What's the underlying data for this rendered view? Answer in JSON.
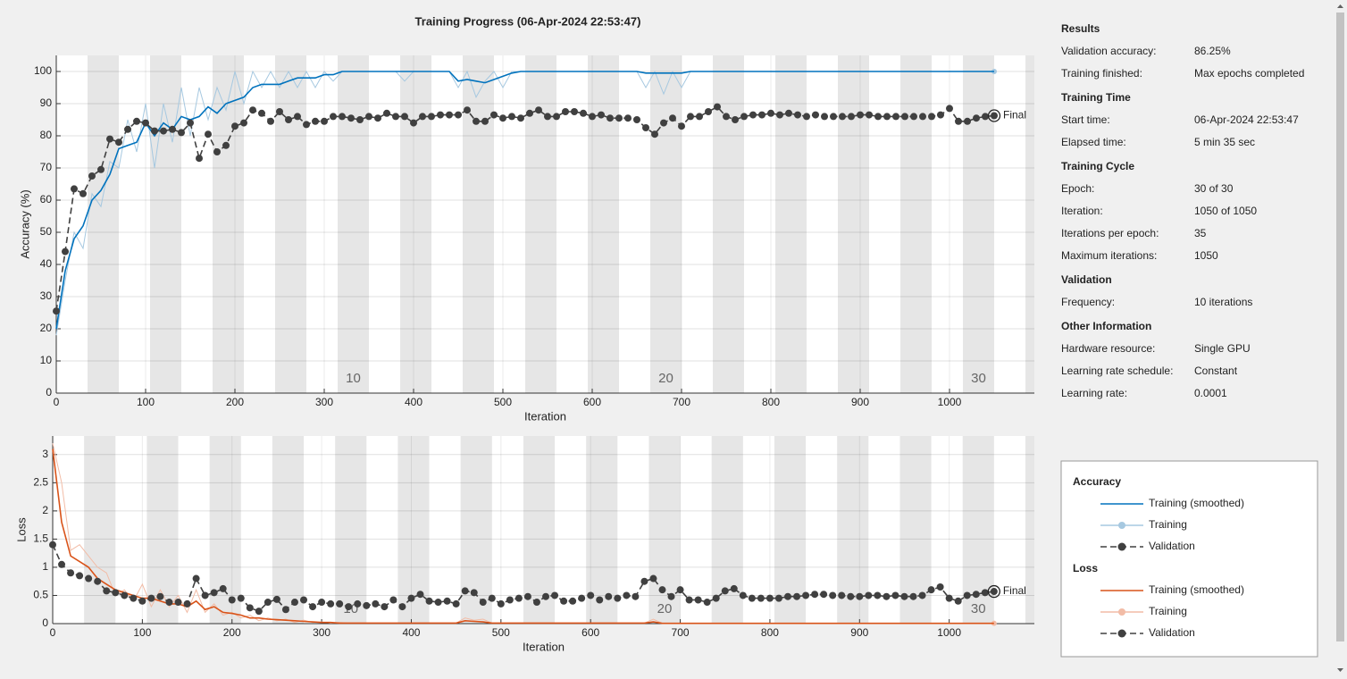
{
  "title": "Training Progress (06-Apr-2024 22:53:47)",
  "chart_data": [
    {
      "type": "line",
      "ylabel": "Accuracy (%)",
      "xlabel": "Iteration",
      "legend_title": "Accuracy",
      "annotation": "Final",
      "xlim": [
        0,
        1095
      ],
      "ylim": [
        0,
        105
      ],
      "xticks": [
        0,
        100,
        200,
        300,
        400,
        500,
        600,
        700,
        800,
        900,
        1000
      ],
      "yticks": [
        0,
        10,
        20,
        30,
        40,
        50,
        60,
        70,
        80,
        90,
        100
      ],
      "grid": true,
      "epoch_labels": [
        10,
        20,
        30
      ],
      "x": [
        0,
        10,
        20,
        30,
        40,
        50,
        60,
        70,
        80,
        90,
        100,
        110,
        120,
        130,
        140,
        150,
        160,
        170,
        180,
        190,
        200,
        210,
        220,
        230,
        240,
        250,
        260,
        270,
        280,
        290,
        300,
        310,
        320,
        330,
        340,
        350,
        360,
        370,
        380,
        390,
        400,
        410,
        420,
        430,
        440,
        450,
        460,
        470,
        480,
        490,
        500,
        510,
        520,
        530,
        540,
        550,
        560,
        570,
        580,
        590,
        600,
        610,
        620,
        630,
        640,
        650,
        660,
        670,
        680,
        690,
        700,
        710,
        720,
        730,
        740,
        750,
        760,
        770,
        780,
        790,
        800,
        810,
        820,
        830,
        840,
        850,
        860,
        870,
        880,
        890,
        900,
        910,
        920,
        930,
        940,
        950,
        960,
        970,
        980,
        990,
        1000,
        1010,
        1020,
        1030,
        1040,
        1050
      ],
      "series": [
        {
          "name": "Training",
          "color": "#a6c8e0",
          "values": [
            18,
            35,
            50,
            45,
            62,
            58,
            72,
            70,
            85,
            75,
            90,
            70,
            90,
            78,
            95,
            80,
            95,
            85,
            95,
            88,
            100,
            90,
            100,
            95,
            100,
            95,
            100,
            95,
            100,
            95,
            100,
            97,
            100,
            100,
            100,
            100,
            100,
            100,
            100,
            97,
            100,
            100,
            100,
            100,
            100,
            95,
            100,
            92,
            97,
            100,
            95,
            100,
            100,
            100,
            100,
            100,
            100,
            100,
            100,
            100,
            100,
            100,
            100,
            100,
            100,
            100,
            95,
            100,
            93,
            100,
            95,
            100,
            100,
            100,
            100,
            100,
            100,
            100,
            100,
            100,
            100,
            100,
            100,
            100,
            100,
            100,
            100,
            100,
            100,
            100,
            100,
            100,
            100,
            100,
            100,
            100,
            100,
            100,
            100,
            100,
            100,
            100,
            100,
            100,
            100,
            100
          ]
        },
        {
          "name": "Training (smoothed)",
          "color": "#0072bd",
          "values": [
            20,
            38,
            48,
            52,
            60,
            63,
            68,
            76,
            77,
            78,
            84,
            80,
            84,
            82,
            86,
            85,
            86,
            89,
            87,
            90,
            91,
            92,
            95,
            96,
            96,
            96,
            97,
            98,
            98,
            98,
            99,
            99,
            100,
            100,
            100,
            100,
            100,
            100,
            100,
            100,
            100,
            100,
            100,
            100,
            100,
            97,
            97.5,
            97,
            96.5,
            97.5,
            98.5,
            99.5,
            100,
            100,
            100,
            100,
            100,
            100,
            100,
            100,
            100,
            100,
            100,
            100,
            100,
            100,
            99.5,
            99.5,
            99.5,
            99.5,
            99.5,
            100,
            100,
            100,
            100,
            100,
            100,
            100,
            100,
            100,
            100,
            100,
            100,
            100,
            100,
            100,
            100,
            100,
            100,
            100,
            100,
            100,
            100,
            100,
            100,
            100,
            100,
            100,
            100,
            100,
            100,
            100,
            100,
            100,
            100,
            100
          ]
        },
        {
          "name": "Validation",
          "color": "#404040",
          "values": [
            25.5,
            44,
            63.5,
            62,
            67.5,
            69.5,
            79,
            78,
            82,
            84.5,
            84,
            81.5,
            81.5,
            82,
            81,
            84,
            73,
            80.5,
            75,
            77,
            83,
            84,
            88,
            87,
            84.5,
            87.5,
            85,
            86,
            83.5,
            84.5,
            84.5,
            86,
            86,
            85.5,
            85,
            86,
            85.5,
            87,
            86,
            86,
            84,
            86,
            86,
            86.5,
            86.5,
            86.5,
            88,
            84.5,
            84.5,
            86.5,
            85.5,
            86,
            85.5,
            87,
            88,
            86,
            86,
            87.5,
            87.5,
            87,
            86,
            86.5,
            85.5,
            85.5,
            85.5,
            85,
            82.5,
            80.5,
            84,
            85.5,
            83,
            86,
            86,
            87.5,
            89,
            86,
            85,
            86,
            86.5,
            86.5,
            87,
            86.5,
            87,
            86.5,
            86,
            86.5,
            86,
            86,
            86,
            86,
            86.5,
            86.5,
            86,
            86,
            86,
            86,
            86,
            86,
            86,
            86.5,
            88.5,
            84.5,
            84.5,
            85.5,
            86,
            86.25
          ]
        }
      ]
    },
    {
      "type": "line",
      "ylabel": "Loss",
      "xlabel": "Iteration",
      "legend_title": "Loss",
      "annotation": "Final",
      "xlim": [
        0,
        1095
      ],
      "ylim": [
        0,
        3.33
      ],
      "xticks": [
        0,
        100,
        200,
        300,
        400,
        500,
        600,
        700,
        800,
        900,
        1000
      ],
      "yticks": [
        0,
        0.5,
        1,
        1.5,
        2,
        2.5,
        3
      ],
      "grid": true,
      "epoch_labels": [
        10,
        20,
        30
      ],
      "x": [
        0,
        10,
        20,
        30,
        40,
        50,
        60,
        70,
        80,
        90,
        100,
        110,
        120,
        130,
        140,
        150,
        160,
        170,
        180,
        190,
        200,
        210,
        220,
        230,
        240,
        250,
        260,
        270,
        280,
        290,
        300,
        310,
        320,
        330,
        340,
        350,
        360,
        370,
        380,
        390,
        400,
        410,
        420,
        430,
        440,
        450,
        460,
        470,
        480,
        490,
        500,
        510,
        520,
        530,
        540,
        550,
        560,
        570,
        580,
        590,
        600,
        610,
        620,
        630,
        640,
        650,
        660,
        670,
        680,
        690,
        700,
        710,
        720,
        730,
        740,
        750,
        760,
        770,
        780,
        790,
        800,
        810,
        820,
        830,
        840,
        850,
        860,
        870,
        880,
        890,
        900,
        910,
        920,
        930,
        940,
        950,
        960,
        970,
        980,
        990,
        1000,
        1010,
        1020,
        1030,
        1040,
        1050
      ],
      "series": [
        {
          "name": "Training",
          "color": "#f2bca6",
          "values": [
            3.2,
            2.5,
            1.3,
            1.4,
            1.2,
            1.0,
            0.9,
            0.5,
            0.6,
            0.4,
            0.7,
            0.3,
            0.6,
            0.3,
            0.5,
            0.2,
            0.6,
            0.2,
            0.35,
            0.15,
            0.2,
            0.1,
            0.15,
            0.05,
            0.1,
            0.05,
            0.08,
            0.02,
            0.06,
            0.02,
            0.03,
            0.01,
            0.02,
            0.01,
            0.01,
            0.01,
            0.01,
            0.01,
            0.01,
            0.01,
            0.01,
            0.01,
            0.01,
            0.01,
            0.01,
            0.01,
            0.1,
            0.06,
            0.08,
            0.01,
            0.01,
            0.01,
            0.01,
            0.01,
            0.01,
            0.01,
            0.01,
            0.01,
            0.01,
            0.01,
            0.01,
            0.01,
            0.01,
            0.01,
            0.01,
            0.01,
            0.01,
            0.08,
            0.005,
            0.005,
            0.005,
            0.005,
            0.005,
            0.005,
            0.005,
            0.005,
            0.005,
            0.005,
            0.005,
            0.005,
            0.005,
            0.005,
            0.005,
            0.005,
            0.005,
            0.005,
            0.005,
            0.005,
            0.005,
            0.005,
            0.005,
            0.005,
            0.005,
            0.005,
            0.005,
            0.005,
            0.005,
            0.005,
            0.005,
            0.005,
            0.005,
            0.005,
            0.005,
            0.005,
            0.005,
            0.005
          ]
        },
        {
          "name": "Training (smoothed)",
          "color": "#d95319",
          "values": [
            3.1,
            1.8,
            1.2,
            1.1,
            1.0,
            0.8,
            0.7,
            0.6,
            0.55,
            0.5,
            0.45,
            0.45,
            0.4,
            0.35,
            0.35,
            0.3,
            0.4,
            0.25,
            0.3,
            0.2,
            0.18,
            0.15,
            0.1,
            0.1,
            0.08,
            0.07,
            0.06,
            0.05,
            0.04,
            0.03,
            0.02,
            0.02,
            0.01,
            0.01,
            0.01,
            0.01,
            0.01,
            0.01,
            0.01,
            0.01,
            0.01,
            0.01,
            0.01,
            0.01,
            0.01,
            0.01,
            0.05,
            0.04,
            0.03,
            0.01,
            0.01,
            0.01,
            0.01,
            0.01,
            0.01,
            0.01,
            0.01,
            0.01,
            0.01,
            0.01,
            0.01,
            0.01,
            0.01,
            0.01,
            0.01,
            0.01,
            0.01,
            0.03,
            0.005,
            0.005,
            0.005,
            0.005,
            0.005,
            0.005,
            0.005,
            0.005,
            0.005,
            0.005,
            0.005,
            0.005,
            0.005,
            0.005,
            0.005,
            0.005,
            0.005,
            0.005,
            0.005,
            0.005,
            0.005,
            0.005,
            0.005,
            0.005,
            0.005,
            0.005,
            0.005,
            0.005,
            0.005,
            0.005,
            0.005,
            0.005,
            0.005,
            0.005,
            0.005,
            0.005,
            0.005,
            0.005
          ]
        },
        {
          "name": "Validation",
          "color": "#404040",
          "values": [
            1.4,
            1.05,
            0.9,
            0.85,
            0.8,
            0.75,
            0.58,
            0.55,
            0.5,
            0.45,
            0.4,
            0.45,
            0.48,
            0.38,
            0.38,
            0.35,
            0.8,
            0.5,
            0.55,
            0.62,
            0.42,
            0.45,
            0.28,
            0.22,
            0.38,
            0.43,
            0.25,
            0.38,
            0.42,
            0.3,
            0.38,
            0.35,
            0.35,
            0.3,
            0.35,
            0.32,
            0.35,
            0.3,
            0.42,
            0.3,
            0.45,
            0.52,
            0.4,
            0.38,
            0.4,
            0.35,
            0.58,
            0.55,
            0.38,
            0.45,
            0.35,
            0.42,
            0.45,
            0.48,
            0.38,
            0.48,
            0.5,
            0.4,
            0.4,
            0.45,
            0.5,
            0.42,
            0.48,
            0.45,
            0.5,
            0.48,
            0.75,
            0.8,
            0.6,
            0.48,
            0.6,
            0.42,
            0.42,
            0.38,
            0.45,
            0.58,
            0.62,
            0.5,
            0.45,
            0.45,
            0.45,
            0.45,
            0.48,
            0.48,
            0.5,
            0.52,
            0.52,
            0.5,
            0.5,
            0.48,
            0.48,
            0.5,
            0.5,
            0.48,
            0.5,
            0.48,
            0.48,
            0.5,
            0.6,
            0.65,
            0.45,
            0.4,
            0.5,
            0.52,
            0.55,
            0.57
          ]
        }
      ]
    }
  ],
  "info_panel": {
    "sections": [
      {
        "heading": "Results",
        "rows": [
          [
            "Validation accuracy:",
            "86.25%"
          ],
          [
            "Training finished:",
            "Max epochs completed"
          ]
        ]
      },
      {
        "heading": "Training Time",
        "rows": [
          [
            "Start time:",
            "06-Apr-2024 22:53:47"
          ],
          [
            "Elapsed time:",
            "5 min 35 sec"
          ]
        ]
      },
      {
        "heading": "Training Cycle",
        "rows": [
          [
            "Epoch:",
            "30 of 30"
          ],
          [
            "Iteration:",
            "1050 of 1050"
          ],
          [
            "Iterations per epoch:",
            "35"
          ],
          [
            "Maximum iterations:",
            "1050"
          ]
        ]
      },
      {
        "heading": "Validation",
        "rows": [
          [
            "Frequency:",
            "10 iterations"
          ]
        ]
      },
      {
        "heading": "Other Information",
        "rows": [
          [
            "Hardware resource:",
            "Single GPU"
          ],
          [
            "Learning rate schedule:",
            "Constant"
          ],
          [
            "Learning rate:",
            "0.0001"
          ]
        ]
      }
    ]
  }
}
